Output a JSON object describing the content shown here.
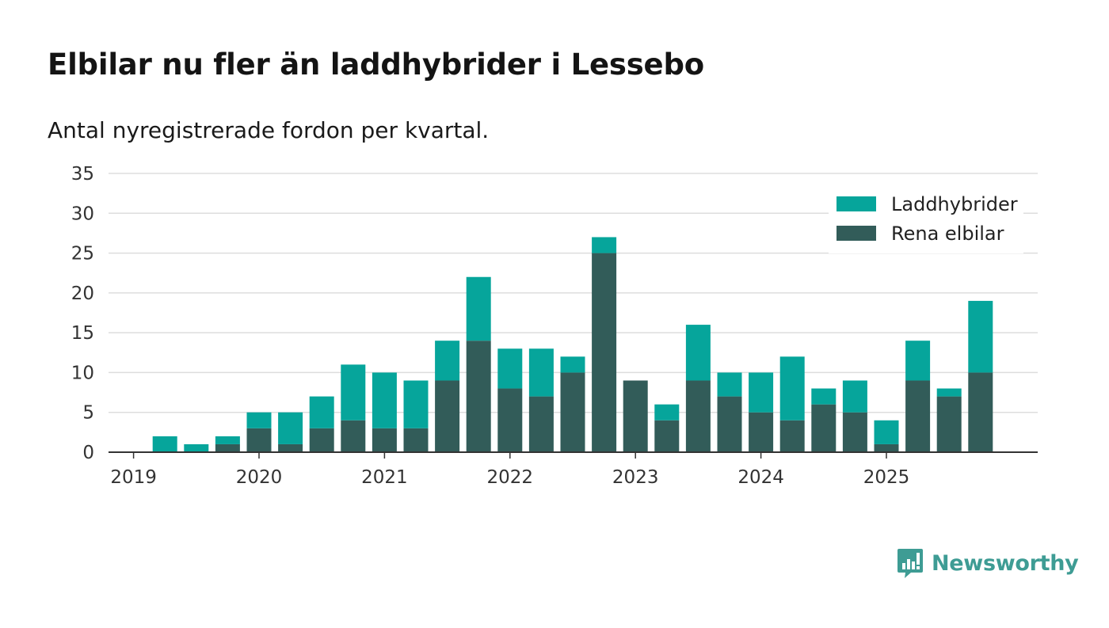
{
  "title": "Elbilar nu fler än laddhybrider i Lessebo",
  "subtitle": "Antal nyregistrerade fordon per kvartal.",
  "brand": {
    "name": "Newsworthy",
    "icon": "newsworthy-logo-icon"
  },
  "colors": {
    "laddhybrider": "#06a59b",
    "rena_elbilar": "#325c59",
    "grid": "#dddddd",
    "axis": "#333333",
    "brand": "#3e9c94"
  },
  "chart_data": {
    "type": "bar",
    "stacked": true,
    "title": "Elbilar nu fler än laddhybrider i Lessebo",
    "subtitle": "Antal nyregistrerade fordon per kvartal.",
    "xlabel": "",
    "ylabel": "",
    "ylim": [
      0,
      35
    ],
    "yticks": [
      0,
      5,
      10,
      15,
      20,
      25,
      30,
      35
    ],
    "grid": true,
    "legend_position": "top-right",
    "x_tick_labels": [
      "2019",
      "2020",
      "2021",
      "2022",
      "2023",
      "2024",
      "2025"
    ],
    "categories": [
      "2019 Q1",
      "2019 Q2",
      "2019 Q3",
      "2019 Q4",
      "2020 Q1",
      "2020 Q2",
      "2020 Q3",
      "2020 Q4",
      "2021 Q1",
      "2021 Q2",
      "2021 Q3",
      "2021 Q4",
      "2022 Q1",
      "2022 Q2",
      "2022 Q3",
      "2022 Q4",
      "2023 Q1",
      "2023 Q2",
      "2023 Q3",
      "2023 Q4",
      "2024 Q1",
      "2024 Q2",
      "2024 Q3",
      "2024 Q4",
      "2025 Q1",
      "2025 Q2",
      "2025 Q3",
      "2025 Q4"
    ],
    "series": [
      {
        "name": "Rena elbilar",
        "color": "#325c59",
        "values": [
          0,
          0,
          0,
          1,
          3,
          1,
          3,
          4,
          3,
          3,
          9,
          14,
          8,
          7,
          10,
          25,
          9,
          4,
          9,
          7,
          5,
          4,
          6,
          5,
          1,
          9,
          7,
          10
        ]
      },
      {
        "name": "Laddhybrider",
        "color": "#06a59b",
        "values": [
          0,
          2,
          1,
          1,
          2,
          4,
          4,
          7,
          7,
          6,
          5,
          8,
          5,
          6,
          2,
          2,
          0,
          2,
          7,
          3,
          5,
          8,
          2,
          4,
          3,
          5,
          1,
          9
        ]
      }
    ],
    "legend": [
      "Laddhybrider",
      "Rena elbilar"
    ]
  }
}
